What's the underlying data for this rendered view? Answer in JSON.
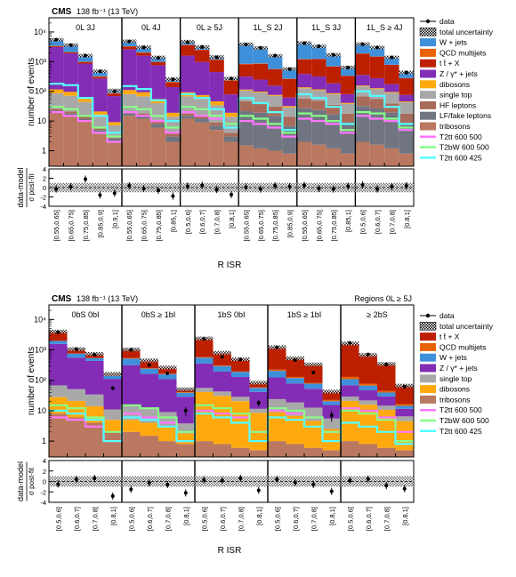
{
  "colors": {
    "data": "#000000",
    "wjets": "#3f90da",
    "qcd": "#e76300",
    "ttx": "#bd1f01",
    "zjets": "#832db6",
    "dibosons": "#ffa90e",
    "singletop": "#a8a8a8",
    "hf": "#a96b59",
    "lffake": "#717581",
    "tribosons": "#b9785f",
    "sig1": "#ff77ff",
    "sig2": "#88ff88",
    "sig3": "#55ffff"
  },
  "chart_data": [
    {
      "type": "bar",
      "stacked": true,
      "log_y": true,
      "experiment": "CMS",
      "lumi_label": "138 fb⁻¹ (13 TeV)",
      "region_label": "",
      "ylabel": "number of events",
      "ratio_label": "data-model",
      "ratio_sublabel": "σ post-fit",
      "xlabel": "R ISR",
      "ylim": [
        0.3,
        30000
      ],
      "ratio_ylim": [
        -4,
        4
      ],
      "ratio_ticks": [
        "4",
        "2",
        "0",
        "-2",
        "-4"
      ],
      "groups": [
        {
          "label": "0L 3J",
          "bins": [
            "[0.55,0.65]",
            "[0.65,0.75]",
            "[0.75,0.85]",
            "[0.85,0.9]",
            "[0.9,1]"
          ]
        },
        {
          "label": "0L 4J",
          "bins": [
            "[0.55,0.65]",
            "[0.65,0.75]",
            "[0.75,0.85]",
            "[0.85,1]"
          ]
        },
        {
          "label": "0L ≥ 5J",
          "bins": [
            "[0.5,0.6]",
            "[0.6,0.7]",
            "[0.7,0.8]",
            "[0.8,1]"
          ]
        },
        {
          "label": "1L_S 2J",
          "bins": [
            "[0.55,0.65]",
            "[0.65,0.75]",
            "[0.75,0.85]",
            "[0.85,0.9]"
          ]
        },
        {
          "label": "1L_S 3J",
          "bins": [
            "[0.55,0.65]",
            "[0.65,0.75]",
            "[0.75,0.85]",
            "[0.85,1]"
          ]
        },
        {
          "label": "1L_S ≥ 4J",
          "bins": [
            "[0.5,0.6]",
            "[0.6,0.7]",
            "[0.7,0.8]",
            "[0.8,1]"
          ]
        }
      ],
      "legend": [
        {
          "label": "data",
          "key": "data",
          "style": "marker"
        },
        {
          "label": "total uncertainty",
          "key": "unc",
          "style": "hatch"
        },
        {
          "label": "W + jets",
          "key": "wjets",
          "style": "box"
        },
        {
          "label": "QCD multijets",
          "key": "qcd",
          "style": "box"
        },
        {
          "label": "t t̄ + X",
          "key": "ttx",
          "style": "box"
        },
        {
          "label": "Z / γ* + jets",
          "key": "zjets",
          "style": "box"
        },
        {
          "label": "dibosons",
          "key": "dibosons",
          "style": "box"
        },
        {
          "label": "single top",
          "key": "singletop",
          "style": "box"
        },
        {
          "label": "HF leptons",
          "key": "hf",
          "style": "box"
        },
        {
          "label": "LF/fake leptons",
          "key": "lffake",
          "style": "box"
        },
        {
          "label": "tribosons",
          "key": "tribosons",
          "style": "box"
        },
        {
          "label": "T2tt 600 500",
          "key": "sig1",
          "style": "line"
        },
        {
          "label": "T2bW 600 500",
          "key": "sig2",
          "style": "line"
        },
        {
          "label": "T2tt 600 425",
          "key": "sig3",
          "style": "line"
        }
      ],
      "stack_order": [
        "tribosons",
        "lffake",
        "hf",
        "singletop",
        "dibosons",
        "zjets",
        "ttx",
        "qcd",
        "wjets"
      ],
      "stack": {
        "tribosons": [
          20,
          15,
          10,
          4,
          2,
          15,
          12,
          6,
          2,
          12,
          9,
          5,
          2,
          1.5,
          1.2,
          1,
          0.8,
          2,
          1.6,
          1.2,
          0.8,
          2,
          1.6,
          1.2,
          0.8
        ],
        "lffake": [
          3,
          3,
          2,
          1,
          0.6,
          3,
          3,
          2,
          1,
          3,
          3,
          2,
          1,
          20,
          18,
          14,
          6,
          25,
          22,
          16,
          8,
          30,
          25,
          18,
          8
        ],
        "hf": [
          3,
          3,
          2,
          1,
          0.6,
          3,
          3,
          2,
          1,
          3,
          3,
          2,
          1,
          25,
          22,
          16,
          7,
          30,
          25,
          18,
          9,
          35,
          28,
          20,
          9
        ],
        "singletop": [
          60,
          50,
          30,
          10,
          4,
          60,
          50,
          30,
          10,
          50,
          40,
          25,
          10,
          60,
          50,
          40,
          15,
          70,
          60,
          45,
          20,
          80,
          65,
          50,
          25
        ],
        "dibosons": [
          30,
          25,
          15,
          5,
          2,
          30,
          25,
          15,
          5,
          25,
          20,
          12,
          5,
          8,
          7,
          5,
          3,
          10,
          8,
          6,
          3,
          10,
          8,
          6,
          3
        ],
        "zjets": [
          3000,
          1800,
          800,
          250,
          60,
          2500,
          1500,
          700,
          120,
          1500,
          900,
          400,
          60,
          200,
          150,
          80,
          30,
          250,
          200,
          100,
          40,
          200,
          150,
          80,
          30
        ],
        "ttx": [
          200,
          150,
          100,
          40,
          15,
          600,
          400,
          200,
          60,
          2000,
          1500,
          700,
          150,
          500,
          600,
          400,
          200,
          800,
          900,
          500,
          250,
          1500,
          1200,
          600,
          200
        ],
        "qcd": [
          100,
          50,
          30,
          10,
          3,
          100,
          60,
          30,
          10,
          100,
          60,
          30,
          10,
          30,
          20,
          10,
          5,
          30,
          20,
          10,
          5,
          30,
          20,
          10,
          5
        ],
        "wjets": [
          2000,
          1500,
          600,
          150,
          20,
          1500,
          1000,
          400,
          50,
          1000,
          600,
          250,
          30,
          3000,
          2000,
          1000,
          300,
          3000,
          2000,
          1000,
          300,
          2000,
          1500,
          600,
          150
        ]
      },
      "data": [
        5500,
        3600,
        1600,
        470,
        100,
        4800,
        3000,
        1350,
        250,
        4500,
        3100,
        1400,
        270,
        3800,
        2900,
        1600,
        560,
        4200,
        3300,
        1700,
        630,
        3900,
        3000,
        1400,
        430
      ],
      "ratio": [
        -0.3,
        0.2,
        1.8,
        -1.6,
        -1.2,
        0.4,
        -0.2,
        -0.6,
        -1.8,
        0.3,
        0.5,
        -0.4,
        -1.5,
        0.1,
        -0.3,
        0.4,
        0.2,
        0.5,
        -0.2,
        -0.3,
        0.3,
        0.6,
        -0.3,
        0.2,
        0.4
      ],
      "signals": {
        "sig1": [
          20,
          15,
          10,
          4,
          2,
          20,
          15,
          10,
          4,
          20,
          15,
          12,
          6,
          10,
          8,
          6,
          3,
          12,
          10,
          8,
          4,
          15,
          12,
          10,
          5
        ],
        "sig2": [
          30,
          25,
          15,
          6,
          3,
          30,
          25,
          15,
          6,
          30,
          25,
          15,
          8,
          15,
          12,
          8,
          4,
          18,
          15,
          10,
          5,
          20,
          18,
          12,
          6
        ],
        "sig3": [
          180,
          160,
          60,
          15,
          4,
          150,
          120,
          50,
          10,
          80,
          60,
          25,
          6,
          60,
          40,
          20,
          5,
          80,
          60,
          30,
          8,
          100,
          70,
          30,
          8
        ]
      }
    },
    {
      "type": "bar",
      "stacked": true,
      "log_y": true,
      "experiment": "CMS",
      "lumi_label": "138 fb⁻¹ (13 TeV)",
      "region_label": "Regions 0L ≥ 5J",
      "ylabel": "number of events",
      "ratio_label": "data-model",
      "ratio_sublabel": "σ post-fit",
      "xlabel": "R ISR",
      "ylim": [
        0.3,
        30000
      ],
      "ratio_ylim": [
        -4,
        4
      ],
      "ratio_ticks": [
        "4",
        "2",
        "0",
        "-2",
        "-4"
      ],
      "groups": [
        {
          "label": "0bS 0bI",
          "bins": [
            "[0.5,0.6]",
            "[0.6,0.7]",
            "[0.7,0.8]",
            "[0.8,1]"
          ]
        },
        {
          "label": "0bS ≥ 1bI",
          "bins": [
            "[0.5,0.6]",
            "[0.6,0.7]",
            "[0.7,0.8]",
            "[0.8,1]"
          ]
        },
        {
          "label": "1bS 0bI",
          "bins": [
            "[0.5,0.6]",
            "[0.6,0.7]",
            "[0.7,0.8]",
            "[0.8,1]"
          ]
        },
        {
          "label": "1bS ≥ 1bI",
          "bins": [
            "[0.5,0.6]",
            "[0.6,0.7]",
            "[0.7,0.8]",
            "[0.8,1]"
          ]
        },
        {
          "label": "≥ 2bS",
          "bins": [
            "[0.5,0.6]",
            "[0.6,0.7]",
            "[0.7,0.8]",
            "[0.8,1]"
          ]
        }
      ],
      "legend": [
        {
          "label": "data",
          "key": "data",
          "style": "marker"
        },
        {
          "label": "total uncertainty",
          "key": "unc",
          "style": "hatch"
        },
        {
          "label": "t t̄ + X",
          "key": "ttx",
          "style": "box"
        },
        {
          "label": "QCD multijets",
          "key": "qcd",
          "style": "box"
        },
        {
          "label": "W + jets",
          "key": "wjets",
          "style": "box"
        },
        {
          "label": "Z / γ* + jets",
          "key": "zjets",
          "style": "box"
        },
        {
          "label": "single top",
          "key": "singletop",
          "style": "box"
        },
        {
          "label": "dibosons",
          "key": "dibosons",
          "style": "box"
        },
        {
          "label": "tribosons",
          "key": "tribosons",
          "style": "box"
        },
        {
          "label": "T2tt 600 500",
          "key": "sig1",
          "style": "line"
        },
        {
          "label": "T2bW 600 500",
          "key": "sig2",
          "style": "line"
        },
        {
          "label": "T2tt 600 425",
          "key": "sig3",
          "style": "line"
        }
      ],
      "stack_order": [
        "tribosons",
        "dibosons",
        "singletop",
        "zjets",
        "wjets",
        "qcd",
        "ttx"
      ],
      "stack": {
        "tribosons": [
          8,
          6,
          4,
          2,
          2,
          1.5,
          1,
          0.8,
          1,
          0.8,
          0.6,
          0.5,
          1,
          0.8,
          0.6,
          0.5,
          1,
          0.8,
          0.6,
          0.5
        ],
        "dibosons": [
          20,
          15,
          10,
          3,
          3,
          2.5,
          2,
          1,
          40,
          30,
          20,
          8,
          8,
          6,
          4,
          2,
          20,
          15,
          10,
          4
        ],
        "singletop": [
          40,
          30,
          20,
          6,
          10,
          8,
          6,
          2,
          15,
          12,
          8,
          3,
          15,
          12,
          8,
          3,
          8,
          6,
          4,
          2
        ],
        "zjets": [
          1500,
          500,
          400,
          100,
          300,
          150,
          100,
          25,
          300,
          150,
          100,
          30,
          100,
          60,
          40,
          10,
          40,
          25,
          15,
          5
        ],
        "wjets": [
          400,
          200,
          100,
          30,
          200,
          80,
          50,
          10,
          200,
          100,
          60,
          15,
          80,
          40,
          25,
          5,
          40,
          20,
          10,
          3
        ],
        "qcd": [
          20,
          10,
          5,
          2,
          20,
          10,
          5,
          2,
          20,
          10,
          5,
          2,
          20,
          10,
          5,
          2,
          20,
          10,
          5,
          2
        ],
        "ttx": [
          2000,
          300,
          200,
          20,
          500,
          200,
          100,
          10,
          1800,
          500,
          300,
          25,
          1000,
          400,
          250,
          20,
          1500,
          600,
          300,
          50
        ]
      },
      "data": [
        3800,
        1050,
        700,
        55,
        1000,
        320,
        170,
        10,
        2300,
        590,
        480,
        18,
        1200,
        460,
        180,
        7,
        1700,
        710,
        330,
        62
      ],
      "ratio": [
        -0.5,
        0.4,
        0.6,
        -2.8,
        -1.5,
        -0.3,
        -0.6,
        -2.2,
        0.3,
        0.2,
        0.6,
        -1.7,
        0.4,
        -0.2,
        -0.6,
        -1.9,
        0.2,
        0.5,
        -0.8,
        -1.4
      ],
      "signals": {
        "sig1": [
          6,
          5,
          3,
          1,
          8,
          6,
          4,
          1,
          10,
          8,
          6,
          2,
          10,
          8,
          6,
          2,
          12,
          10,
          6,
          2
        ],
        "sig2": [
          15,
          12,
          6,
          2,
          15,
          12,
          6,
          2,
          15,
          12,
          8,
          2,
          12,
          10,
          6,
          2,
          10,
          8,
          5,
          1
        ],
        "sig3": [
          10,
          8,
          5,
          1,
          6,
          5,
          3,
          1,
          8,
          6,
          4,
          1,
          6,
          5,
          3,
          1,
          4,
          3,
          2,
          0.8
        ]
      }
    }
  ]
}
